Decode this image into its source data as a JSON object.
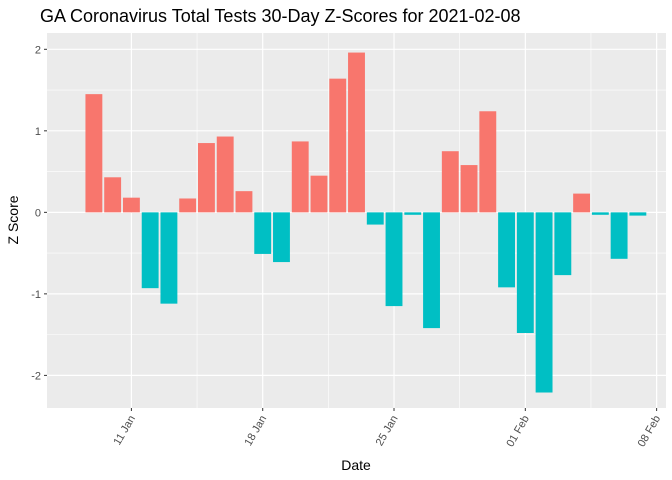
{
  "chart_data": {
    "type": "bar",
    "title": "GA Coronavirus Total Tests 30-Day Z-Scores for 2021-02-08",
    "xlabel": "Date",
    "ylabel": "Z Score",
    "ylim": [
      -2.4,
      2.2
    ],
    "xlim": [
      "2021-01-07",
      "2021-02-08"
    ],
    "grid": true,
    "legend": "none",
    "colors": {
      "positive": "#F8766D",
      "negative": "#00BFC4",
      "panel": "#EBEBEB",
      "grid": "#FFFFFF"
    },
    "y_ticks": [
      {
        "value": -2,
        "label": "-2"
      },
      {
        "value": -1,
        "label": "-1"
      },
      {
        "value": 0,
        "label": "0"
      },
      {
        "value": 1,
        "label": "1"
      },
      {
        "value": 2,
        "label": "2"
      }
    ],
    "x_ticks": [
      {
        "date": "2021-01-11",
        "label": "11 Jan"
      },
      {
        "date": "2021-01-18",
        "label": "18 Jan"
      },
      {
        "date": "2021-01-25",
        "label": "25 Jan"
      },
      {
        "date": "2021-02-01",
        "label": "01 Feb"
      },
      {
        "date": "2021-02-08",
        "label": "08 Feb"
      }
    ],
    "x": [
      "2021-01-09",
      "2021-01-10",
      "2021-01-11",
      "2021-01-12",
      "2021-01-13",
      "2021-01-14",
      "2021-01-15",
      "2021-01-16",
      "2021-01-17",
      "2021-01-18",
      "2021-01-19",
      "2021-01-20",
      "2021-01-21",
      "2021-01-22",
      "2021-01-23",
      "2021-01-24",
      "2021-01-25",
      "2021-01-26",
      "2021-01-27",
      "2021-01-28",
      "2021-01-29",
      "2021-01-30",
      "2021-01-31",
      "2021-02-01",
      "2021-02-02",
      "2021-02-03",
      "2021-02-04",
      "2021-02-05",
      "2021-02-06",
      "2021-02-07"
    ],
    "values": [
      1.45,
      0.43,
      0.18,
      -0.93,
      -1.12,
      0.17,
      0.85,
      0.93,
      0.26,
      -0.51,
      -0.61,
      0.87,
      0.45,
      1.64,
      1.96,
      -0.15,
      -1.15,
      -0.03,
      -1.42,
      0.75,
      0.58,
      1.24,
      -0.92,
      -1.48,
      -2.21,
      -0.77,
      0.23,
      -0.03,
      -0.57,
      -0.04
    ]
  }
}
